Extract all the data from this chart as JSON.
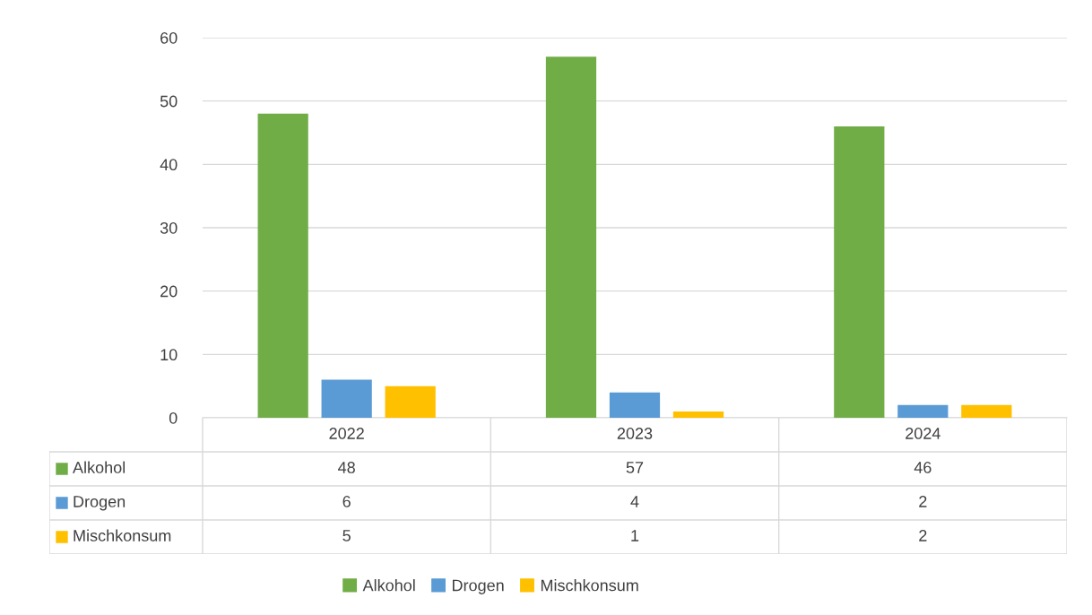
{
  "chart_data": {
    "type": "bar",
    "categories": [
      "2022",
      "2023",
      "2024"
    ],
    "series": [
      {
        "name": "Alkohol",
        "color": "#70ad47",
        "values": [
          48,
          57,
          46
        ]
      },
      {
        "name": "Drogen",
        "color": "#5b9bd5",
        "values": [
          6,
          4,
          2
        ]
      },
      {
        "name": "Mischkonsum",
        "color": "#ffc000",
        "values": [
          5,
          1,
          2
        ]
      }
    ],
    "ylim": [
      0,
      60
    ],
    "yticks": [
      0,
      10,
      20,
      30,
      40,
      50,
      60
    ],
    "grid": "y",
    "legend": "bottom",
    "data_labels": true
  }
}
